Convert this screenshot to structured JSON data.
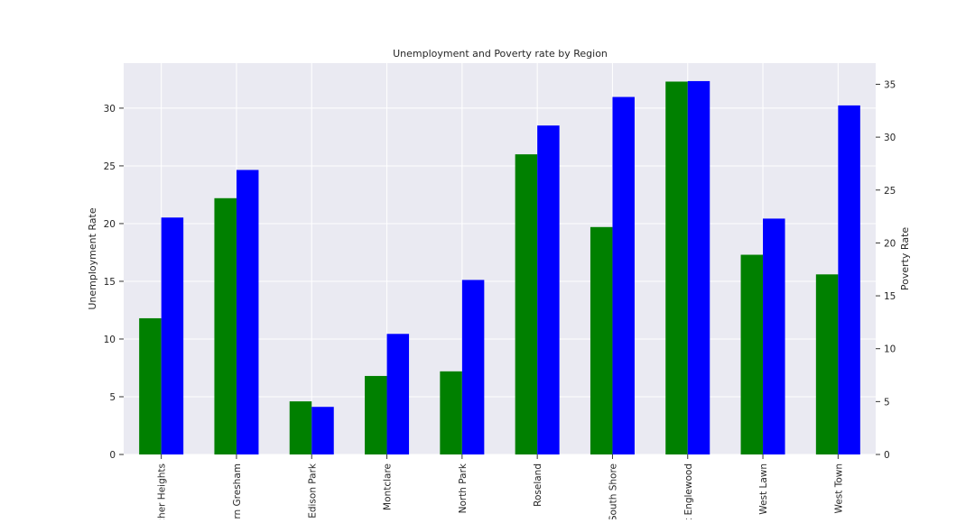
{
  "chart_data": {
    "type": "bar",
    "title": "Unemployment and Poverty rate by Region",
    "xlabel": "",
    "ylabel": "Unemployment Rate",
    "y2label": "Poverty Rate",
    "categories": [
      "Archer Heights",
      "Auburn Gresham",
      "Edison Park",
      "Montclare",
      "North Park",
      "Roseland",
      "South Shore",
      "West Englewood",
      "West Lawn",
      "West Town"
    ],
    "category_labels_visible": [
      "cher Heights",
      "urn Gresham",
      "Edison Park",
      "Montclare",
      "North Park",
      "Roseland",
      "South Shore",
      "t Englewood",
      "West Lawn",
      "West Town"
    ],
    "series": [
      {
        "name": "Unemployment Rate",
        "axis": "left",
        "color": "#008000",
        "values": [
          11.8,
          22.2,
          4.6,
          6.8,
          7.2,
          26.0,
          19.7,
          32.3,
          17.3,
          15.6
        ]
      },
      {
        "name": "Poverty Rate",
        "axis": "right",
        "color": "#0000ff",
        "values": [
          22.4,
          26.9,
          4.5,
          11.4,
          16.5,
          31.1,
          33.8,
          35.3,
          22.3,
          33.0
        ]
      }
    ],
    "ylim": [
      0,
      33.9
    ],
    "y2lim": [
      0,
      37.0
    ],
    "yticks": [
      0,
      5,
      10,
      15,
      20,
      25,
      30
    ],
    "y2ticks": [
      0,
      5,
      10,
      15,
      20,
      25,
      30,
      35
    ],
    "grid": true,
    "background": "#eaeaf2"
  }
}
